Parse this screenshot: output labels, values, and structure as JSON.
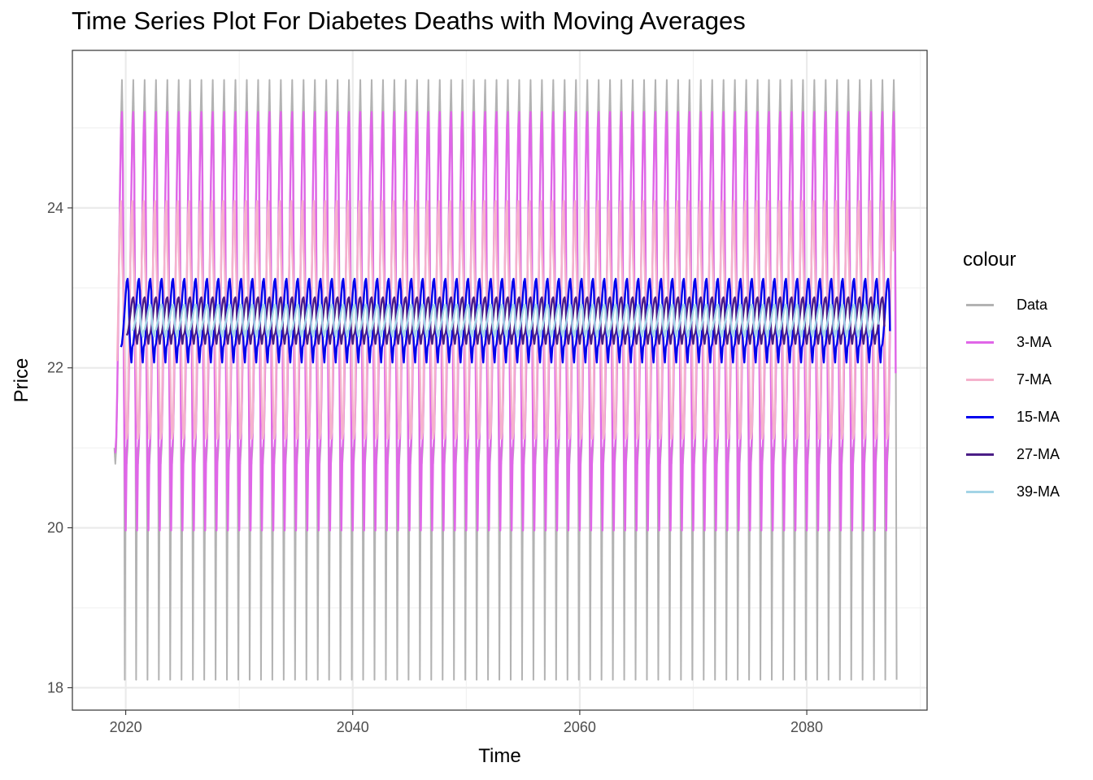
{
  "chart_data": {
    "type": "line",
    "title": "Time Series Plot For Diabetes Deaths with Moving Averages",
    "xlabel": "Time",
    "ylabel": "Price",
    "xlim": [
      2015.3,
      2090.6
    ],
    "ylim": [
      17.72,
      25.97
    ],
    "x_ticks": [
      2020,
      2040,
      2060,
      2080
    ],
    "x_tick_labels": [
      "2020",
      "2040",
      "2060",
      "2080"
    ],
    "y_ticks": [
      18,
      20,
      22,
      24
    ],
    "y_tick_labels": [
      "18",
      "20",
      "22",
      "24"
    ],
    "x_range": [
      2019.0,
      2087.9
    ],
    "frequency": 12,
    "grid": true,
    "legend_title": "colour",
    "legend_position": "right",
    "seasonal_cycle": [
      21.0,
      20.8,
      21.0,
      21.6,
      22.5,
      23.4,
      24.3,
      25.1,
      25.6,
      24.9,
      22.8,
      18.1
    ],
    "series": [
      {
        "name": "Data",
        "color": "#b3b3b3",
        "window": 1
      },
      {
        "name": "3-MA",
        "color": "#e066e8",
        "window": 3
      },
      {
        "name": "7-MA",
        "color": "#f5b2cc",
        "window": 7
      },
      {
        "name": "15-MA",
        "color": "#0000ee",
        "window": 15
      },
      {
        "name": "27-MA",
        "color": "#4b1e87",
        "window": 27
      },
      {
        "name": "39-MA",
        "color": "#a3d4e6",
        "window": 39
      }
    ]
  }
}
